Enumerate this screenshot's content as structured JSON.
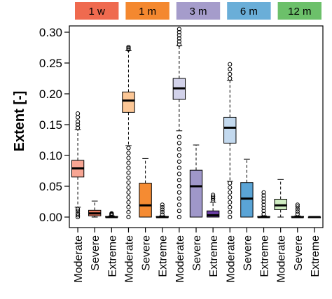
{
  "chart_data": {
    "type": "boxplot",
    "ylabel": "Extent [-]",
    "ylim": [
      0,
      0.3
    ],
    "y_ticks": [
      "0.00",
      "0.05",
      "0.10",
      "0.15",
      "0.20",
      "0.25",
      "0.30"
    ],
    "grid": false,
    "groups": [
      {
        "label": "1 w",
        "color": "#ef6a4f"
      },
      {
        "label": "1 m",
        "color": "#f4882f"
      },
      {
        "label": "3 m",
        "color": "#a59ccb"
      },
      {
        "label": "6 m",
        "color": "#6aaed8"
      },
      {
        "label": "12 m",
        "color": "#6cc06a"
      }
    ],
    "categories": [
      "Moderate",
      "Severe",
      "Extreme",
      "Moderate",
      "Severe",
      "Extreme",
      "Moderate",
      "Severe",
      "Extreme",
      "Moderate",
      "Severe",
      "Extreme",
      "Moderate",
      "Severe",
      "Extreme"
    ],
    "boxes": [
      {
        "group": "1 w",
        "category": "Moderate",
        "color": "#f7a593",
        "whisker_low": 0.016,
        "q1": 0.065,
        "median": 0.079,
        "q3": 0.092,
        "whisker_high": 0.142,
        "outliers": [
          0.0,
          0.003,
          0.006,
          0.01,
          0.013,
          0.145,
          0.15,
          0.155,
          0.162,
          0.168
        ]
      },
      {
        "group": "1 w",
        "category": "Severe",
        "color": "#e8785c",
        "whisker_low": 0.0,
        "q1": 0.002,
        "median": 0.006,
        "q3": 0.011,
        "whisker_high": 0.026,
        "outliers": []
      },
      {
        "group": "1 w",
        "category": "Extreme",
        "color": "#c84b34",
        "whisker_low": 0.0,
        "q1": 0.0,
        "median": 0.0,
        "q3": 0.001,
        "whisker_high": 0.002,
        "outliers": [
          0.003,
          0.004,
          0.005,
          0.006
        ]
      },
      {
        "group": "1 m",
        "category": "Moderate",
        "color": "#fcc796",
        "whisker_low": 0.116,
        "q1": 0.17,
        "median": 0.189,
        "q3": 0.203,
        "whisker_high": 0.27,
        "outliers": [
          0.0,
          0.008,
          0.016,
          0.024,
          0.032,
          0.04,
          0.048,
          0.056,
          0.064,
          0.072,
          0.08,
          0.088,
          0.096,
          0.104,
          0.112,
          0.272,
          0.274,
          0.276
        ]
      },
      {
        "group": "1 m",
        "category": "Severe",
        "color": "#f58b32",
        "whisker_low": 0.0,
        "q1": 0.0,
        "median": 0.019,
        "q3": 0.055,
        "whisker_high": 0.095,
        "outliers": []
      },
      {
        "group": "1 m",
        "category": "Extreme",
        "color": "#d05e12",
        "whisker_low": 0.0,
        "q1": 0.0,
        "median": 0.0,
        "q3": 0.001,
        "whisker_high": 0.002,
        "outliers": [
          0.004,
          0.008,
          0.012,
          0.016,
          0.02
        ]
      },
      {
        "group": "3 m",
        "category": "Moderate",
        "color": "#d2d2ea",
        "whisker_low": 0.14,
        "q1": 0.191,
        "median": 0.209,
        "q3": 0.225,
        "whisker_high": 0.278,
        "outliers": [
          0.0,
          0.01,
          0.02,
          0.03,
          0.04,
          0.05,
          0.06,
          0.07,
          0.08,
          0.09,
          0.1,
          0.11,
          0.12,
          0.13,
          0.28,
          0.285,
          0.29,
          0.295,
          0.3,
          0.305
        ]
      },
      {
        "group": "3 m",
        "category": "Severe",
        "color": "#9f97c9",
        "whisker_low": 0.0,
        "q1": 0.0,
        "median": 0.05,
        "q3": 0.076,
        "whisker_high": 0.117,
        "outliers": []
      },
      {
        "group": "3 m",
        "category": "Extreme",
        "color": "#6b3fa6",
        "whisker_low": 0.0,
        "q1": 0.0,
        "median": 0.003,
        "q3": 0.01,
        "whisker_high": 0.024,
        "outliers": [
          0.027,
          0.03,
          0.033,
          0.036
        ]
      },
      {
        "group": "6 m",
        "category": "Moderate",
        "color": "#c3d9ee",
        "whisker_low": 0.058,
        "q1": 0.12,
        "median": 0.145,
        "q3": 0.162,
        "whisker_high": 0.222,
        "outliers": [
          0.0,
          0.008,
          0.016,
          0.024,
          0.032,
          0.04,
          0.048,
          0.055,
          0.225,
          0.232,
          0.24,
          0.248
        ]
      },
      {
        "group": "6 m",
        "category": "Severe",
        "color": "#5aa4d6",
        "whisker_low": 0.0,
        "q1": 0.0,
        "median": 0.03,
        "q3": 0.056,
        "whisker_high": 0.094,
        "outliers": []
      },
      {
        "group": "6 m",
        "category": "Extreme",
        "color": "#2d6ea6",
        "whisker_low": 0.0,
        "q1": 0.0,
        "median": 0.0,
        "q3": 0.001,
        "whisker_high": 0.002,
        "outliers": [
          0.005,
          0.01,
          0.015,
          0.02,
          0.025,
          0.03,
          0.035,
          0.04
        ]
      },
      {
        "group": "12 m",
        "category": "Moderate",
        "color": "#cfedc1",
        "whisker_low": 0.0,
        "q1": 0.012,
        "median": 0.019,
        "q3": 0.029,
        "whisker_high": 0.061,
        "outliers": []
      },
      {
        "group": "12 m",
        "category": "Severe",
        "color": "#73c26b",
        "whisker_low": 0.0,
        "q1": 0.0,
        "median": 0.0,
        "q3": 0.001,
        "whisker_high": 0.002,
        "outliers": [
          0.005,
          0.009,
          0.013,
          0.017,
          0.02
        ]
      },
      {
        "group": "12 m",
        "category": "Extreme",
        "color": "#2f8a3c",
        "whisker_low": 0.0,
        "q1": 0.0,
        "median": 0.0,
        "q3": 0.0,
        "whisker_high": 0.001,
        "outliers": []
      }
    ]
  }
}
